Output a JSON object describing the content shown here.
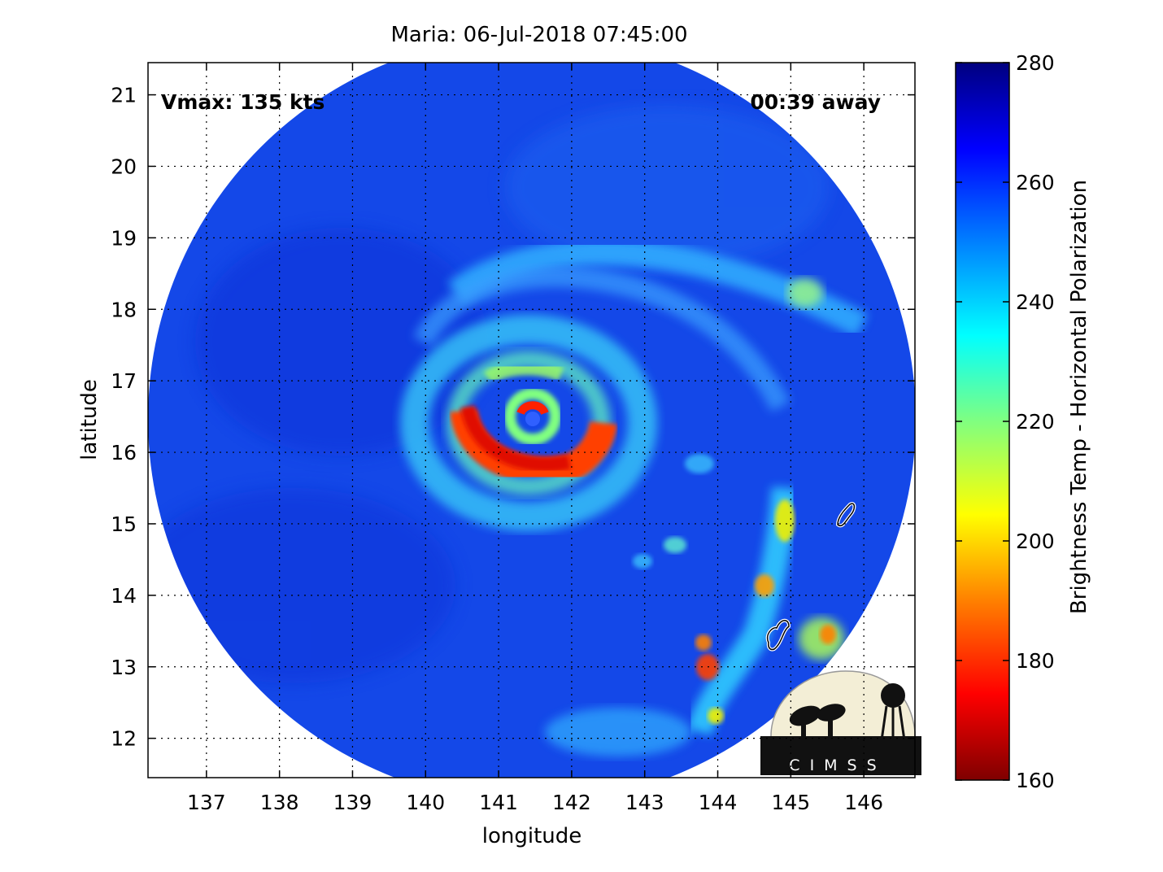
{
  "title": "Maria: 06-Jul-2018 07:45:00",
  "annotations": {
    "vmax": "Vmax: 135 kts",
    "time_away": "00:39 away"
  },
  "axes": {
    "xlabel": "longitude",
    "ylabel": "latitude",
    "xlim": [
      136.2,
      146.7
    ],
    "ylim": [
      11.45,
      21.45
    ],
    "x_ticks": [
      137,
      138,
      139,
      140,
      141,
      142,
      143,
      144,
      145,
      146
    ],
    "y_ticks": [
      12,
      13,
      14,
      15,
      16,
      17,
      18,
      19,
      20,
      21
    ],
    "grid": true
  },
  "colorbar": {
    "label": "Brightness Temp - Horizontal Polarization",
    "range": [
      160,
      280
    ],
    "ticks": [
      160,
      180,
      200,
      220,
      240,
      260,
      280
    ],
    "colormap": [
      "#7f0000",
      "#ff0000",
      "#ff8000",
      "#ffff00",
      "#80ff80",
      "#00ffff",
      "#0080ff",
      "#0000ff",
      "#00007f"
    ]
  },
  "storm": {
    "center_lon": 141.4,
    "center_lat": 16.45,
    "eyewall_min_temp": 175
  },
  "logo": {
    "text": "CIMSS"
  }
}
